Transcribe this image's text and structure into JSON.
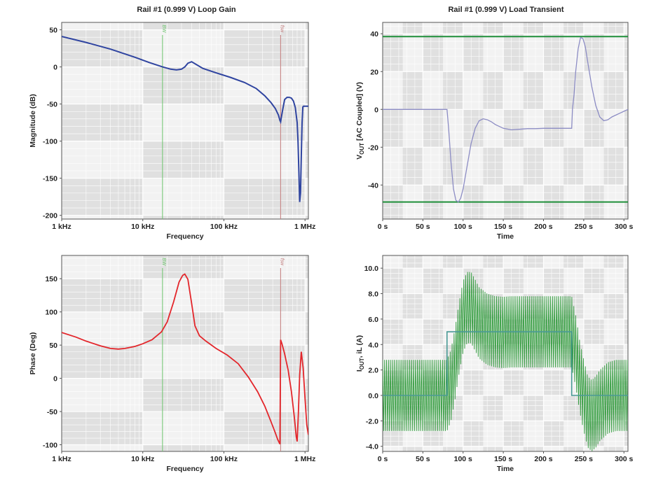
{
  "colors": {
    "magnitude": "#2f44a0",
    "phase": "#e3262b",
    "vout": "#8c8cc4",
    "vout_limits": "#1f8f3a",
    "inductor_current": "#2e9a3a",
    "iout": "#4a9a96",
    "bw_marker": "#6cc46c",
    "fs_marker": "#c27b7b"
  },
  "chart_data": [
    {
      "id": "loop-gain-magnitude",
      "type": "line",
      "title": "Rail #1 (0.999 V) Loop Gain",
      "xlabel": "Frequency",
      "ylabel": "Magnitude (dB)",
      "xscale": "log",
      "xlim": [
        1000,
        1100000
      ],
      "ylim": [
        -205,
        60
      ],
      "xticks": [
        1000,
        10000,
        100000,
        1000000
      ],
      "xtick_labels": [
        "1 kHz",
        "10 kHz",
        "100 kHz",
        "1 MHz"
      ],
      "yticks": [
        50,
        0,
        -50,
        -100,
        -150,
        -200
      ],
      "ytick_labels": [
        "50",
        "0",
        "-50",
        "-100",
        "-150",
        "-200"
      ],
      "grid": true,
      "markers": [
        {
          "x": 17500,
          "label": "BW"
        },
        {
          "x": 500000,
          "label": "fsw"
        }
      ],
      "series": [
        {
          "x": [
            1000,
            2000,
            4000,
            8000,
            12000,
            17500,
            22000,
            26000,
            30000,
            33000,
            36000,
            40000,
            46000,
            55000,
            80000,
            120000,
            180000,
            250000,
            320000,
            380000,
            430000,
            470000,
            490000,
            500000,
            510000,
            530000,
            560000,
            600000,
            640000,
            680000,
            720000,
            760000,
            800000,
            820000,
            840000,
            860000,
            880000,
            900000,
            920000,
            940000,
            960000,
            980000,
            1000000,
            1100000
          ],
          "y": [
            41,
            33,
            24,
            13,
            6,
            0,
            -3,
            -4,
            -3,
            0,
            5,
            7,
            3,
            -2,
            -8,
            -14,
            -21,
            -29,
            -39,
            -48,
            -56,
            -65,
            -72,
            -74,
            -68,
            -58,
            -44,
            -41,
            -41,
            -42,
            -46,
            -55,
            -75,
            -100,
            -140,
            -182,
            -170,
            -120,
            -75,
            -54,
            -53,
            -53,
            -53,
            -53
          ]
        }
      ]
    },
    {
      "id": "loop-gain-phase",
      "type": "line",
      "title": "",
      "xlabel": "Frequency",
      "ylabel": "Phase (Deg)",
      "xscale": "log",
      "xlim": [
        1000,
        1100000
      ],
      "ylim": [
        -110,
        185
      ],
      "xticks": [
        1000,
        10000,
        100000,
        1000000
      ],
      "xtick_labels": [
        "1 kHz",
        "10 kHz",
        "100 kHz",
        "1 MHz"
      ],
      "yticks": [
        150,
        100,
        50,
        0,
        -50,
        -100
      ],
      "ytick_labels": [
        "150",
        "100",
        "50",
        "0",
        "-50",
        "-100"
      ],
      "grid": true,
      "markers": [
        {
          "x": 17500,
          "label": "BW"
        },
        {
          "x": 500000,
          "label": "fsw"
        }
      ],
      "series": [
        {
          "x": [
            1000,
            1500,
            2000,
            3000,
            4000,
            5000,
            6000,
            8000,
            10000,
            13000,
            17000,
            20000,
            24000,
            28000,
            31000,
            33000,
            36000,
            40000,
            44000,
            50000,
            60000,
            80000,
            110000,
            150000,
            200000,
            260000,
            320000,
            380000,
            430000,
            460000,
            490000,
            500000,
            520000,
            560000,
            620000,
            680000,
            740000,
            780000,
            800000,
            830000,
            860000,
            900000,
            950000,
            1000000,
            1050000,
            1100000
          ],
          "y": [
            69,
            62,
            56,
            49,
            45,
            44,
            45,
            48,
            52,
            58,
            70,
            85,
            115,
            145,
            155,
            157,
            149,
            113,
            79,
            64,
            56,
            45,
            35,
            22,
            2,
            -20,
            -42,
            -65,
            -82,
            -92,
            -99,
            58,
            52,
            37,
            12,
            -20,
            -60,
            -88,
            -95,
            -50,
            5,
            40,
            15,
            -30,
            -70,
            -85
          ]
        }
      ]
    },
    {
      "id": "load-transient-vout",
      "type": "line",
      "title": "Rail #1 (0.999 V) Load Transient",
      "xlabel": "Time",
      "ylabel": "V_OUT [AC Coupled] (V)",
      "ylabel_main": "V",
      "ylabel_sub": "OUT",
      "ylabel_rest": " [AC Coupled] (V)",
      "xlim": [
        0,
        305
      ],
      "ylim": [
        -58,
        46
      ],
      "xticks": [
        0,
        50,
        100,
        150,
        200,
        250,
        300
      ],
      "xtick_labels": [
        "0 s",
        "50 s",
        "100 s",
        "150 s",
        "200 s",
        "250 s",
        "300 s"
      ],
      "yticks": [
        40,
        20,
        0,
        -20,
        -40
      ],
      "ytick_labels": [
        "40",
        "20",
        "0",
        "-20",
        "-40"
      ],
      "grid": true,
      "limits": [
        38.5,
        -49
      ],
      "series": [
        {
          "x": [
            0,
            20,
            40,
            60,
            80,
            82,
            85,
            88,
            91,
            94,
            97,
            100,
            105,
            110,
            115,
            120,
            125,
            130,
            135,
            140,
            150,
            160,
            170,
            180,
            190,
            200,
            210,
            220,
            230,
            235,
            236,
            238,
            240,
            243,
            246,
            249,
            252,
            255,
            260,
            265,
            270,
            275,
            280,
            285,
            290,
            295,
            300,
            305
          ],
          "y": [
            0,
            0,
            0,
            0,
            0,
            -10,
            -28,
            -42,
            -48,
            -49,
            -47,
            -42,
            -30,
            -18,
            -10,
            -6,
            -5,
            -5.5,
            -6.5,
            -8,
            -10,
            -10.8,
            -10.5,
            -10.2,
            -10.2,
            -10,
            -10,
            -10,
            -10,
            -10,
            0,
            8,
            20,
            32,
            38,
            37.5,
            33,
            25,
            12,
            2,
            -4,
            -6,
            -5.5,
            -4,
            -3,
            -2,
            -1,
            0
          ]
        }
      ]
    },
    {
      "id": "load-transient-current",
      "type": "line",
      "title": "",
      "xlabel": "Time",
      "ylabel": "I_OUT, iL (A)",
      "ylabel_main": "I",
      "ylabel_sub": "OUT",
      "ylabel_rest": ", iL (A)",
      "xlim": [
        0,
        305
      ],
      "ylim": [
        -4.4,
        11
      ],
      "xticks": [
        0,
        50,
        100,
        150,
        200,
        250,
        300
      ],
      "xtick_labels": [
        "0 s",
        "50 s",
        "100 s",
        "150 s",
        "200 s",
        "250 s",
        "300 s"
      ],
      "yticks": [
        10,
        8,
        6,
        4,
        2,
        0,
        -2,
        -4
      ],
      "ytick_labels": [
        "10.0",
        "8.0",
        "6.0",
        "4.0",
        "2.0",
        "0.0",
        "-2.0",
        "-4.0"
      ],
      "grid": true,
      "series": [
        {
          "name": "I_OUT",
          "x": [
            0,
            80,
            80,
            235,
            235,
            305
          ],
          "y": [
            0,
            0,
            5,
            5,
            0,
            0
          ]
        },
        {
          "name": "iL",
          "ripple_amplitude": 2.8,
          "ripple_period": 2.4,
          "x": [
            0,
            80,
            85,
            90,
            95,
            100,
            105,
            110,
            115,
            120,
            130,
            140,
            150,
            160,
            180,
            200,
            220,
            230,
            235,
            240,
            245,
            250,
            255,
            260,
            265,
            270,
            280,
            290,
            300,
            305
          ],
          "y": [
            0,
            0,
            0.8,
            2.5,
            4.5,
            6.2,
            6.9,
            6.9,
            6.3,
            5.7,
            5.2,
            5.0,
            4.95,
            5.0,
            5.0,
            5.0,
            5.0,
            5.0,
            5.0,
            3.5,
            1.5,
            0,
            -1.3,
            -1.6,
            -1.3,
            -0.8,
            -0.2,
            0,
            0,
            0
          ]
        }
      ]
    }
  ]
}
